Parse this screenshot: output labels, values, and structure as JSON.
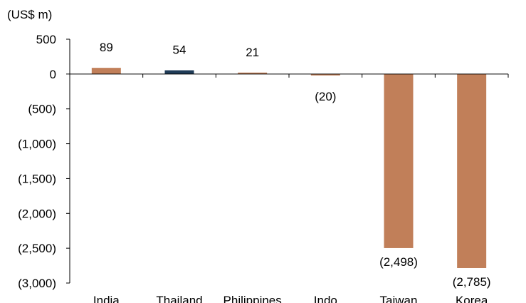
{
  "chart_data": {
    "type": "bar",
    "unit_label": "(US$ m)",
    "categories": [
      "India",
      "Thailand",
      "Philippines",
      "Indo",
      "Taiwan",
      "Korea"
    ],
    "values": [
      89,
      54,
      21,
      -20,
      -2498,
      -2785
    ],
    "value_labels": [
      "89",
      "54",
      "21",
      "(20)",
      "(2,498)",
      "(2,785)"
    ],
    "bar_colors": [
      "#C17F59",
      "#1F3B57",
      "#C17F59",
      "#C17F59",
      "#C17F59",
      "#C17F59"
    ],
    "ylim": [
      -3000,
      500
    ],
    "yticks": [
      500,
      0,
      -500,
      -1000,
      -1500,
      -2000,
      -2500,
      -3000
    ],
    "ytick_labels": [
      "500",
      "0",
      "(500)",
      "(1,000)",
      "(1,500)",
      "(2,000)",
      "(2,500)",
      "(3,000)"
    ],
    "legend": "none",
    "grid": false
  }
}
